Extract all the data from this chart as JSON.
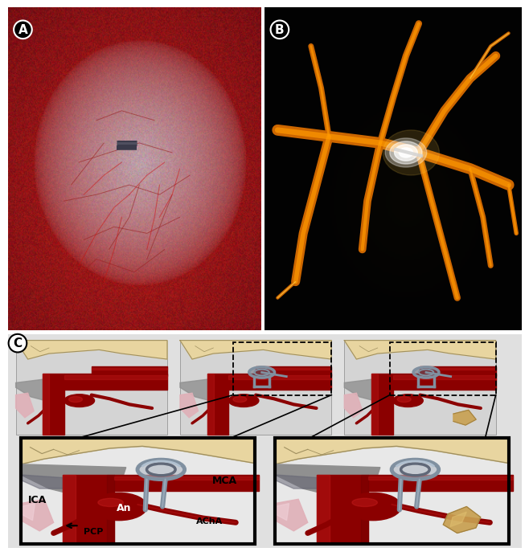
{
  "panel_A_label": "A",
  "panel_B_label": "B",
  "panel_C_label": "C",
  "label_fontsize": 11,
  "label_fontweight": "bold",
  "background_color": "#ffffff",
  "panel_A": {
    "brain_pink": "#C8A8B0",
    "brain_gray": "#9090A0",
    "blood_red": "#8B1010",
    "vessel_red": "#CC3333",
    "clip_color": "#505060"
  },
  "panel_B": {
    "bg": "#050505",
    "vessel_dark": "#CC6600",
    "vessel_bright": "#FF9900",
    "vessel_yellow": "#FFCC44",
    "aneurysm_white": "#FFFFFF",
    "clip_white": "#E0E0E0"
  },
  "panel_C": {
    "artery_dark": "#8B0000",
    "artery_mid": "#A51010",
    "artery_light": "#CC2020",
    "bone_cream": "#E8D5A0",
    "bone_tan": "#C8B080",
    "bone_line": "#A09060",
    "brain_gray": "#909090",
    "brain_dark": "#606070",
    "tissue_pink": "#E0B0B8",
    "bg_gray": "#C8C8C8",
    "clip_gray": "#8090A0",
    "clip_light": "#B0C0D0",
    "clip_dark": "#606878",
    "white": "#FFFFFF",
    "black": "#000000",
    "clinoid_gold": "#C8A050",
    "clinoid_dark": "#A08040"
  }
}
